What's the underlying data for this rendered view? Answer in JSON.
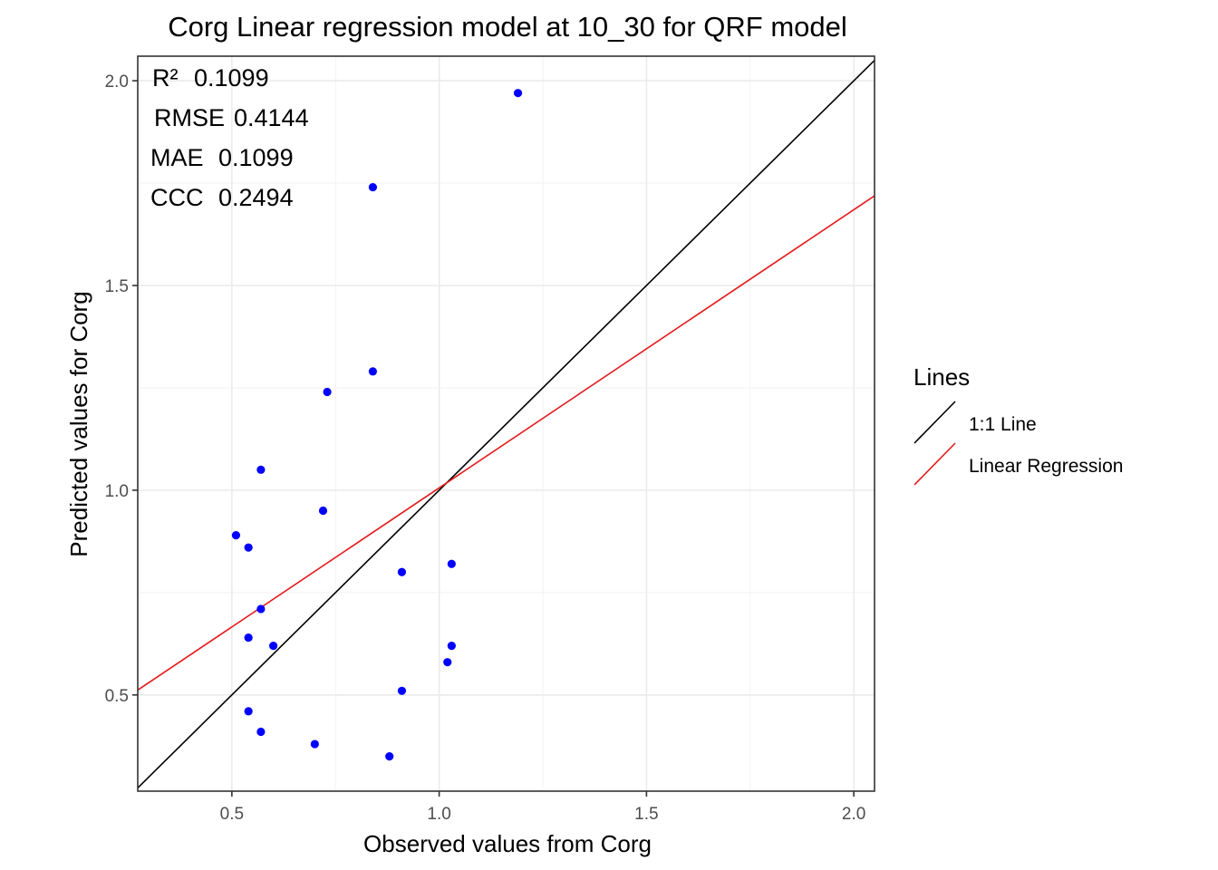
{
  "chart_data": {
    "type": "scatter",
    "title": "Corg  Linear regression model at  10_30  for  QRF  model",
    "xlabel": "Observed values from Corg",
    "ylabel": "Predicted values for Corg",
    "xlim": [
      0.273,
      2.05
    ],
    "ylim": [
      0.265,
      2.06
    ],
    "x_ticks": [
      0.5,
      1.0,
      1.5,
      2.0
    ],
    "x_tick_labels": [
      "0.5",
      "1.0",
      "1.5",
      "2.0"
    ],
    "y_ticks": [
      0.5,
      1.0,
      1.5,
      2.0
    ],
    "y_tick_labels": [
      "0.5",
      "1.0",
      "1.5",
      "2.0"
    ],
    "grid": true,
    "points": {
      "color": "#0000ff",
      "x": [
        1.19,
        0.84,
        0.84,
        0.73,
        0.57,
        0.72,
        0.51,
        0.54,
        0.91,
        1.03,
        0.57,
        0.54,
        0.6,
        1.03,
        1.02,
        0.91,
        0.54,
        0.57,
        0.7,
        0.88
      ],
      "y": [
        1.97,
        1.74,
        1.29,
        1.24,
        1.05,
        0.95,
        0.89,
        0.86,
        0.8,
        0.82,
        0.71,
        0.64,
        0.62,
        0.62,
        0.58,
        0.51,
        0.46,
        0.41,
        0.38,
        0.35
      ]
    },
    "lines": [
      {
        "name": "1:1 Line",
        "color": "#000000",
        "slope": 1,
        "intercept": 0
      },
      {
        "name": "Linear Regression",
        "color": "#e41a1c",
        "slope": 0.6793,
        "intercept": 0.3264
      }
    ],
    "annotations": [
      {
        "label": "R²",
        "value": "0.1099"
      },
      {
        "label": "RMSE",
        "value": "0.4144"
      },
      {
        "label": "MAE",
        "value": "0.1099"
      },
      {
        "label": "CCC",
        "value": "0.2494"
      }
    ],
    "legend": {
      "title": "Lines",
      "position": "right",
      "entries": [
        "1:1 Line",
        "Linear Regression"
      ]
    }
  }
}
